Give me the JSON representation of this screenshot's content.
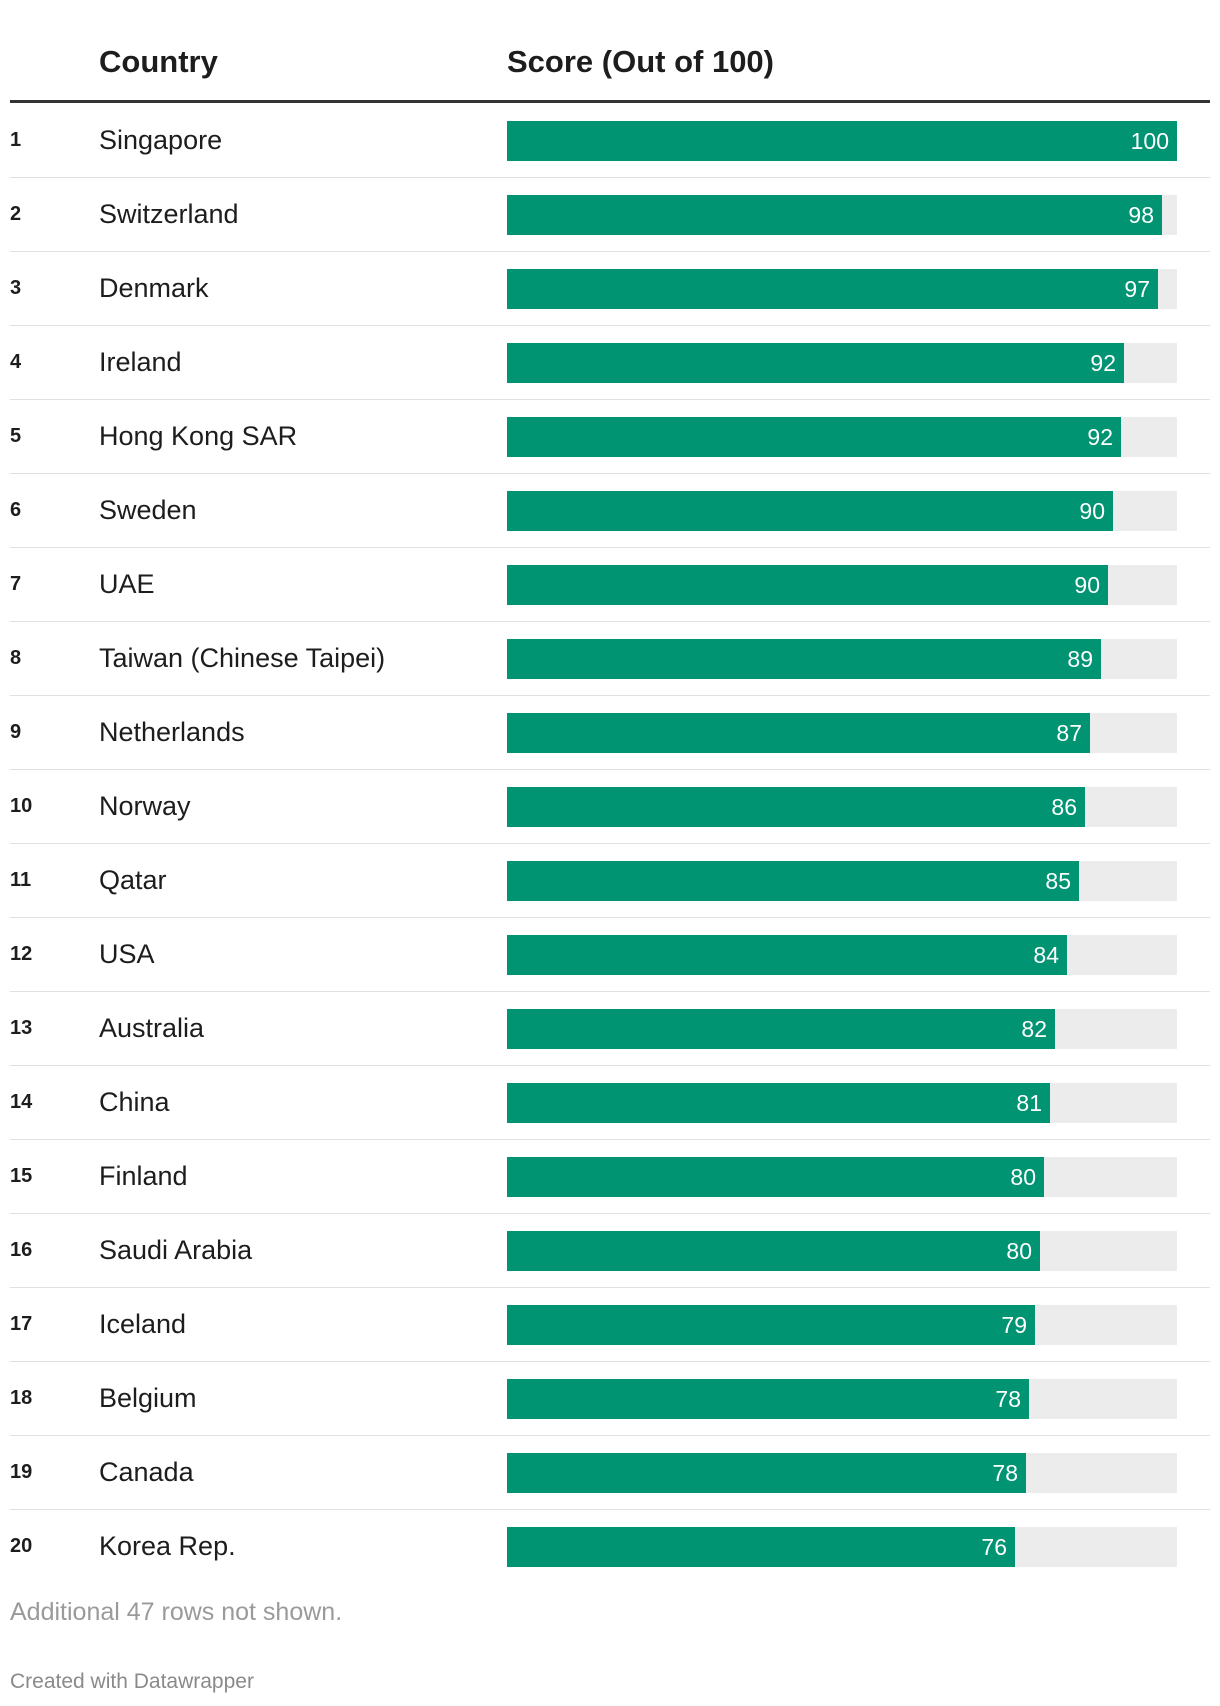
{
  "header": {
    "country_label": "Country",
    "score_label": "Score (Out of 100)"
  },
  "colors": {
    "bar": "#009473",
    "track": "#ececec",
    "label": "#ffffff"
  },
  "chart_data": {
    "type": "bar",
    "orientation": "horizontal",
    "columns": [
      "Country",
      "Score (Out of 100)"
    ],
    "xlim": [
      0,
      100
    ],
    "categories": [
      "Singapore",
      "Switzerland",
      "Denmark",
      "Ireland",
      "Hong Kong SAR",
      "Sweden",
      "UAE",
      "Taiwan (Chinese Taipei)",
      "Netherlands",
      "Norway",
      "Qatar",
      "USA",
      "Australia",
      "China",
      "Finland",
      "Saudi Arabia",
      "Iceland",
      "Belgium",
      "Canada",
      "Korea Rep."
    ],
    "ranks": [
      "1",
      "2",
      "3",
      "4",
      "5",
      "6",
      "7",
      "8",
      "9",
      "10",
      "11",
      "12",
      "13",
      "14",
      "15",
      "16",
      "17",
      "18",
      "19",
      "20"
    ],
    "values": [
      100,
      97.7,
      97.1,
      92.1,
      91.6,
      90.4,
      89.7,
      88.6,
      87,
      86.3,
      85.4,
      83.6,
      81.8,
      81,
      80.2,
      79.6,
      78.8,
      77.9,
      77.5,
      75.8
    ],
    "value_labels": [
      "100",
      "98",
      "97",
      "92",
      "92",
      "90",
      "90",
      "89",
      "87",
      "86",
      "85",
      "84",
      "82",
      "81",
      "80",
      "80",
      "79",
      "78",
      "78",
      "76"
    ]
  },
  "footnote": "Additional 47 rows not shown.",
  "credit": "Created with Datawrapper"
}
